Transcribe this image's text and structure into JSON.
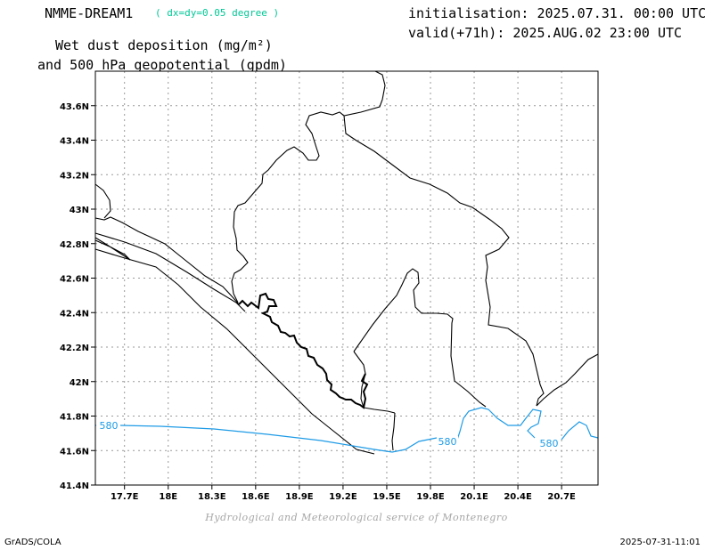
{
  "header": {
    "model": "NMME-DREAM1",
    "resolution": "( dx=dy=0.05 degree )",
    "init": "initialisation: 2025.07.31. 00:00 UTC",
    "valid": "valid(+71h): 2025.AUG.02 23:00 UTC",
    "title_line1": "Wet dust deposition (mg/m²)",
    "title_line2": "and 500 hPa geopotential (gpdm)"
  },
  "map": {
    "lon_range": [
      17.5,
      20.95
    ],
    "lat_range": [
      41.4,
      43.8
    ],
    "x_ticks": [
      "17.7E",
      "18E",
      "18.3E",
      "18.6E",
      "18.9E",
      "19.2E",
      "19.5E",
      "19.8E",
      "20.1E",
      "20.4E",
      "20.7E"
    ],
    "y_ticks": [
      "41.4N",
      "41.6N",
      "41.8N",
      "42N",
      "42.2N",
      "42.4N",
      "42.6N",
      "42.8N",
      "43N",
      "43.2N",
      "43.4N",
      "43.6N"
    ],
    "grid": true,
    "contour_color": "#1e9be6",
    "contour_labels": [
      "580",
      "580",
      "580"
    ]
  },
  "footer": {
    "credit": "Hydrological and Meteorological service of Montenegro",
    "software": "GrADS/COLA",
    "timestamp": "2025-07-31-11:01"
  }
}
